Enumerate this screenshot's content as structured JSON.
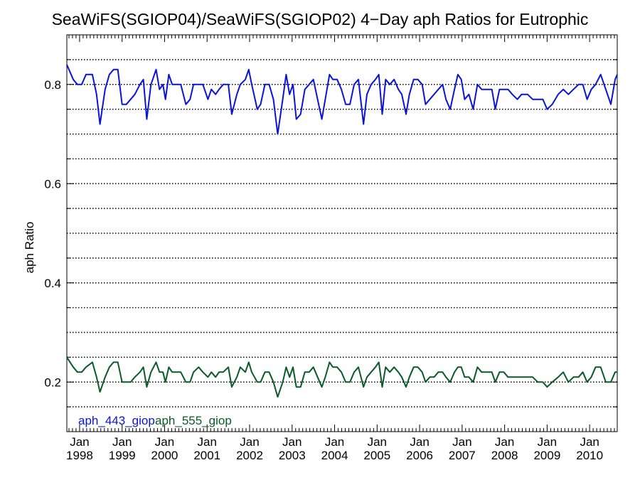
{
  "chart_data": {
    "type": "line",
    "title": "SeaWiFS(SGIOP04)/SeaWiFS(SGIOP02) 4−Day aph Ratios for Eutrophic",
    "xlabel": "",
    "ylabel": "aph Ratio",
    "xlim": [
      1997.7,
      2010.65
    ],
    "ylim": [
      0.1,
      0.9
    ],
    "yticks": [
      0.2,
      0.4,
      0.6,
      0.8
    ],
    "ytick_labels": [
      "0.2",
      "0.4",
      "0.6",
      "0.8"
    ],
    "gridlines_y": [
      0.15,
      0.2,
      0.25,
      0.3,
      0.35,
      0.4,
      0.45,
      0.5,
      0.55,
      0.6,
      0.65,
      0.7,
      0.75,
      0.8,
      0.85
    ],
    "grid": true,
    "xticks": [
      1998,
      1999,
      2000,
      2001,
      2002,
      2003,
      2004,
      2005,
      2006,
      2007,
      2008,
      2009,
      2010
    ],
    "xtick_labels": [
      {
        "month": "Jan",
        "year": "1998"
      },
      {
        "month": "Jan",
        "year": "1999"
      },
      {
        "month": "Jan",
        "year": "2000"
      },
      {
        "month": "Jan",
        "year": "2001"
      },
      {
        "month": "Jan",
        "year": "2002"
      },
      {
        "month": "Jan",
        "year": "2003"
      },
      {
        "month": "Jan",
        "year": "2004"
      },
      {
        "month": "Jan",
        "year": "2005"
      },
      {
        "month": "Jan",
        "year": "2006"
      },
      {
        "month": "Jan",
        "year": "2007"
      },
      {
        "month": "Jan",
        "year": "2008"
      },
      {
        "month": "Jan",
        "year": "2009"
      },
      {
        "month": "Jan",
        "year": "2010"
      }
    ],
    "legend_placement": "bottom-left",
    "series": [
      {
        "name": "aph_443_giop",
        "color": "#0a14d8",
        "points": [
          [
            1997.7,
            0.84
          ],
          [
            1997.85,
            0.81
          ],
          [
            1997.95,
            0.8
          ],
          [
            1998.05,
            0.8
          ],
          [
            1998.15,
            0.82
          ],
          [
            1998.3,
            0.82
          ],
          [
            1998.4,
            0.78
          ],
          [
            1998.48,
            0.72
          ],
          [
            1998.6,
            0.79
          ],
          [
            1998.7,
            0.82
          ],
          [
            1998.8,
            0.83
          ],
          [
            1998.9,
            0.83
          ],
          [
            1999.0,
            0.76
          ],
          [
            1999.1,
            0.76
          ],
          [
            1999.2,
            0.77
          ],
          [
            1999.3,
            0.78
          ],
          [
            1999.42,
            0.8
          ],
          [
            1999.5,
            0.81
          ],
          [
            1999.58,
            0.73
          ],
          [
            1999.68,
            0.8
          ],
          [
            1999.8,
            0.83
          ],
          [
            1999.88,
            0.79
          ],
          [
            1999.96,
            0.8
          ],
          [
            2000.02,
            0.77
          ],
          [
            2000.1,
            0.82
          ],
          [
            2000.18,
            0.8
          ],
          [
            2000.28,
            0.8
          ],
          [
            2000.38,
            0.8
          ],
          [
            2000.5,
            0.76
          ],
          [
            2000.6,
            0.77
          ],
          [
            2000.68,
            0.8
          ],
          [
            2000.8,
            0.8
          ],
          [
            2000.9,
            0.8
          ],
          [
            2001.02,
            0.77
          ],
          [
            2001.1,
            0.79
          ],
          [
            2001.2,
            0.78
          ],
          [
            2001.28,
            0.79
          ],
          [
            2001.38,
            0.8
          ],
          [
            2001.5,
            0.8
          ],
          [
            2001.58,
            0.74
          ],
          [
            2001.7,
            0.78
          ],
          [
            2001.78,
            0.8
          ],
          [
            2001.9,
            0.81
          ],
          [
            2001.98,
            0.83
          ],
          [
            2002.05,
            0.8
          ],
          [
            2002.18,
            0.75
          ],
          [
            2002.26,
            0.76
          ],
          [
            2002.36,
            0.8
          ],
          [
            2002.46,
            0.8
          ],
          [
            2002.56,
            0.77
          ],
          [
            2002.66,
            0.7
          ],
          [
            2002.78,
            0.77
          ],
          [
            2002.86,
            0.82
          ],
          [
            2002.94,
            0.78
          ],
          [
            2003.02,
            0.8
          ],
          [
            2003.1,
            0.73
          ],
          [
            2003.2,
            0.74
          ],
          [
            2003.3,
            0.79
          ],
          [
            2003.4,
            0.8
          ],
          [
            2003.5,
            0.81
          ],
          [
            2003.6,
            0.77
          ],
          [
            2003.7,
            0.73
          ],
          [
            2003.78,
            0.77
          ],
          [
            2003.88,
            0.82
          ],
          [
            2003.96,
            0.81
          ],
          [
            2004.06,
            0.81
          ],
          [
            2004.16,
            0.79
          ],
          [
            2004.26,
            0.76
          ],
          [
            2004.36,
            0.76
          ],
          [
            2004.46,
            0.8
          ],
          [
            2004.56,
            0.81
          ],
          [
            2004.68,
            0.72
          ],
          [
            2004.76,
            0.78
          ],
          [
            2004.86,
            0.8
          ],
          [
            2004.96,
            0.81
          ],
          [
            2005.04,
            0.82
          ],
          [
            2005.12,
            0.74
          ],
          [
            2005.2,
            0.81
          ],
          [
            2005.3,
            0.8
          ],
          [
            2005.4,
            0.81
          ],
          [
            2005.5,
            0.79
          ],
          [
            2005.58,
            0.78
          ],
          [
            2005.68,
            0.74
          ],
          [
            2005.76,
            0.78
          ],
          [
            2005.86,
            0.81
          ],
          [
            2005.96,
            0.81
          ],
          [
            2006.06,
            0.8
          ],
          [
            2006.14,
            0.76
          ],
          [
            2006.24,
            0.77
          ],
          [
            2006.34,
            0.78
          ],
          [
            2006.44,
            0.79
          ],
          [
            2006.54,
            0.8
          ],
          [
            2006.62,
            0.77
          ],
          [
            2006.72,
            0.75
          ],
          [
            2006.82,
            0.79
          ],
          [
            2006.9,
            0.82
          ],
          [
            2006.98,
            0.81
          ],
          [
            2007.06,
            0.77
          ],
          [
            2007.16,
            0.78
          ],
          [
            2007.26,
            0.75
          ],
          [
            2007.36,
            0.8
          ],
          [
            2007.46,
            0.79
          ],
          [
            2007.58,
            0.79
          ],
          [
            2007.7,
            0.79
          ],
          [
            2007.78,
            0.75
          ],
          [
            2007.88,
            0.79
          ],
          [
            2007.98,
            0.79
          ],
          [
            2008.08,
            0.79
          ],
          [
            2008.18,
            0.78
          ],
          [
            2008.3,
            0.77
          ],
          [
            2008.4,
            0.78
          ],
          [
            2008.54,
            0.78
          ],
          [
            2008.66,
            0.77
          ],
          [
            2008.78,
            0.77
          ],
          [
            2008.9,
            0.77
          ],
          [
            2009.0,
            0.75
          ],
          [
            2009.12,
            0.76
          ],
          [
            2009.26,
            0.78
          ],
          [
            2009.38,
            0.79
          ],
          [
            2009.5,
            0.78
          ],
          [
            2009.62,
            0.79
          ],
          [
            2009.74,
            0.8
          ],
          [
            2009.84,
            0.8
          ],
          [
            2009.94,
            0.77
          ],
          [
            2010.04,
            0.79
          ],
          [
            2010.14,
            0.8
          ],
          [
            2010.26,
            0.82
          ],
          [
            2010.38,
            0.79
          ],
          [
            2010.5,
            0.76
          ],
          [
            2010.6,
            0.81
          ],
          [
            2010.65,
            0.82
          ]
        ]
      },
      {
        "name": "aph_555_giop",
        "color": "#0a5a2a",
        "points": [
          [
            1997.7,
            0.25
          ],
          [
            1997.85,
            0.23
          ],
          [
            1997.95,
            0.22
          ],
          [
            1998.05,
            0.22
          ],
          [
            1998.15,
            0.23
          ],
          [
            1998.3,
            0.24
          ],
          [
            1998.4,
            0.21
          ],
          [
            1998.48,
            0.18
          ],
          [
            1998.6,
            0.21
          ],
          [
            1998.7,
            0.23
          ],
          [
            1998.8,
            0.24
          ],
          [
            1998.9,
            0.24
          ],
          [
            1999.0,
            0.2
          ],
          [
            1999.1,
            0.2
          ],
          [
            1999.2,
            0.2
          ],
          [
            1999.3,
            0.21
          ],
          [
            1999.42,
            0.22
          ],
          [
            1999.5,
            0.23
          ],
          [
            1999.58,
            0.19
          ],
          [
            1999.68,
            0.22
          ],
          [
            1999.8,
            0.24
          ],
          [
            1999.88,
            0.22
          ],
          [
            1999.96,
            0.22
          ],
          [
            2000.02,
            0.2
          ],
          [
            2000.1,
            0.23
          ],
          [
            2000.18,
            0.22
          ],
          [
            2000.28,
            0.22
          ],
          [
            2000.38,
            0.22
          ],
          [
            2000.5,
            0.2
          ],
          [
            2000.6,
            0.2
          ],
          [
            2000.68,
            0.22
          ],
          [
            2000.8,
            0.23
          ],
          [
            2000.9,
            0.22
          ],
          [
            2001.02,
            0.21
          ],
          [
            2001.1,
            0.22
          ],
          [
            2001.2,
            0.21
          ],
          [
            2001.28,
            0.22
          ],
          [
            2001.38,
            0.22
          ],
          [
            2001.5,
            0.23
          ],
          [
            2001.58,
            0.19
          ],
          [
            2001.7,
            0.21
          ],
          [
            2001.78,
            0.23
          ],
          [
            2001.9,
            0.22
          ],
          [
            2001.98,
            0.24
          ],
          [
            2002.05,
            0.22
          ],
          [
            2002.18,
            0.2
          ],
          [
            2002.26,
            0.2
          ],
          [
            2002.36,
            0.22
          ],
          [
            2002.46,
            0.22
          ],
          [
            2002.56,
            0.2
          ],
          [
            2002.66,
            0.17
          ],
          [
            2002.78,
            0.2
          ],
          [
            2002.86,
            0.23
          ],
          [
            2002.94,
            0.21
          ],
          [
            2003.02,
            0.23
          ],
          [
            2003.1,
            0.19
          ],
          [
            2003.2,
            0.19
          ],
          [
            2003.3,
            0.22
          ],
          [
            2003.4,
            0.22
          ],
          [
            2003.5,
            0.23
          ],
          [
            2003.6,
            0.21
          ],
          [
            2003.7,
            0.19
          ],
          [
            2003.78,
            0.21
          ],
          [
            2003.88,
            0.24
          ],
          [
            2003.96,
            0.23
          ],
          [
            2004.06,
            0.23
          ],
          [
            2004.16,
            0.22
          ],
          [
            2004.26,
            0.2
          ],
          [
            2004.36,
            0.2
          ],
          [
            2004.46,
            0.22
          ],
          [
            2004.56,
            0.23
          ],
          [
            2004.68,
            0.19
          ],
          [
            2004.76,
            0.21
          ],
          [
            2004.86,
            0.22
          ],
          [
            2004.96,
            0.23
          ],
          [
            2005.04,
            0.24
          ],
          [
            2005.12,
            0.19
          ],
          [
            2005.2,
            0.23
          ],
          [
            2005.3,
            0.22
          ],
          [
            2005.4,
            0.23
          ],
          [
            2005.5,
            0.22
          ],
          [
            2005.58,
            0.21
          ],
          [
            2005.68,
            0.19
          ],
          [
            2005.76,
            0.21
          ],
          [
            2005.86,
            0.23
          ],
          [
            2005.96,
            0.23
          ],
          [
            2006.06,
            0.22
          ],
          [
            2006.14,
            0.2
          ],
          [
            2006.24,
            0.21
          ],
          [
            2006.34,
            0.21
          ],
          [
            2006.44,
            0.22
          ],
          [
            2006.54,
            0.22
          ],
          [
            2006.62,
            0.21
          ],
          [
            2006.72,
            0.2
          ],
          [
            2006.82,
            0.22
          ],
          [
            2006.9,
            0.23
          ],
          [
            2006.98,
            0.23
          ],
          [
            2007.06,
            0.21
          ],
          [
            2007.16,
            0.21
          ],
          [
            2007.26,
            0.2
          ],
          [
            2007.36,
            0.23
          ],
          [
            2007.46,
            0.22
          ],
          [
            2007.58,
            0.22
          ],
          [
            2007.7,
            0.22
          ],
          [
            2007.78,
            0.2
          ],
          [
            2007.88,
            0.22
          ],
          [
            2007.98,
            0.22
          ],
          [
            2008.08,
            0.21
          ],
          [
            2008.18,
            0.21
          ],
          [
            2008.3,
            0.21
          ],
          [
            2008.4,
            0.21
          ],
          [
            2008.54,
            0.21
          ],
          [
            2008.66,
            0.21
          ],
          [
            2008.78,
            0.2
          ],
          [
            2008.9,
            0.2
          ],
          [
            2009.0,
            0.19
          ],
          [
            2009.12,
            0.2
          ],
          [
            2009.26,
            0.21
          ],
          [
            2009.38,
            0.22
          ],
          [
            2009.5,
            0.2
          ],
          [
            2009.62,
            0.21
          ],
          [
            2009.74,
            0.21
          ],
          [
            2009.84,
            0.22
          ],
          [
            2009.94,
            0.2
          ],
          [
            2010.04,
            0.21
          ],
          [
            2010.14,
            0.23
          ],
          [
            2010.26,
            0.23
          ],
          [
            2010.38,
            0.2
          ],
          [
            2010.5,
            0.2
          ],
          [
            2010.6,
            0.22
          ],
          [
            2010.65,
            0.22
          ]
        ]
      }
    ]
  }
}
